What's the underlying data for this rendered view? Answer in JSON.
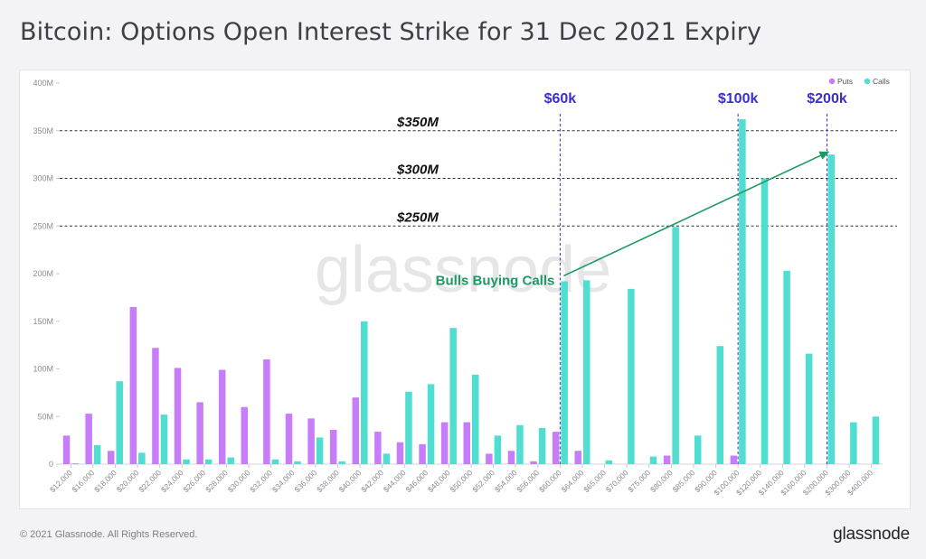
{
  "page": {
    "title": "Bitcoin: Options Open Interest Strike for 31 Dec 2021 Expiry",
    "copyright": "© 2021 Glassnode. All Rights Reserved.",
    "logo": "glassnode",
    "watermark": "glassnode"
  },
  "chart_data": {
    "type": "bar",
    "ylim": [
      0,
      400
    ],
    "yticks": [
      0,
      50,
      100,
      150,
      200,
      250,
      300,
      350,
      400
    ],
    "ytick_labels": [
      "0",
      "50M",
      "100M",
      "150M",
      "200M",
      "250M",
      "300M",
      "350M",
      "400M"
    ],
    "yunit": "M",
    "grid": false,
    "legend_position": "top-right",
    "categories": [
      "$12,000",
      "$16,000",
      "$18,000",
      "$20,000",
      "$22,000",
      "$24,000",
      "$26,000",
      "$28,000",
      "$30,000",
      "$32,000",
      "$34,000",
      "$36,000",
      "$38,000",
      "$40,000",
      "$42,000",
      "$44,000",
      "$46,000",
      "$48,000",
      "$50,000",
      "$52,000",
      "$54,000",
      "$56,000",
      "$60,000",
      "$64,000",
      "$65,000",
      "$70,000",
      "$75,000",
      "$80,000",
      "$85,000",
      "$90,000",
      "$100,000",
      "$120,000",
      "$140,000",
      "$160,000",
      "$200,000",
      "$300,000",
      "$400,000"
    ],
    "series": [
      {
        "name": "Puts",
        "color": "#c77dfa",
        "values": [
          30,
          53,
          14,
          165,
          122,
          101,
          65,
          99,
          60,
          110,
          53,
          48,
          36,
          70,
          34,
          23,
          21,
          44,
          44,
          11,
          14,
          3,
          34,
          14,
          0,
          0,
          0,
          9,
          0,
          0,
          9,
          0,
          0,
          0,
          0,
          0,
          0
        ]
      },
      {
        "name": "Calls",
        "color": "#4fded0",
        "values": [
          1,
          20,
          87,
          12,
          52,
          5,
          5,
          7,
          0,
          5,
          3,
          28,
          3,
          150,
          11,
          76,
          84,
          143,
          94,
          30,
          41,
          38,
          192,
          193,
          4,
          184,
          8,
          249,
          30,
          124,
          362,
          300,
          203,
          116,
          325,
          44,
          50
        ]
      }
    ],
    "reference_lines": [
      {
        "label": "$350M",
        "value": 350
      },
      {
        "label": "$300M",
        "value": 300
      },
      {
        "label": "$250M",
        "value": 250
      }
    ],
    "strike_markers": [
      {
        "label": "$60k",
        "category": "$60,000"
      },
      {
        "label": "$100k",
        "category": "$100,000"
      },
      {
        "label": "$200k",
        "category": "$200,000"
      }
    ],
    "annotation": {
      "text": "Bulls Buying Calls",
      "color": "#1c9a63",
      "arrow_from": {
        "category": "$60,000",
        "value": 192
      },
      "arrow_to": {
        "category": "$200,000",
        "value": 328
      }
    },
    "marker_color": "#3a2fcf"
  }
}
